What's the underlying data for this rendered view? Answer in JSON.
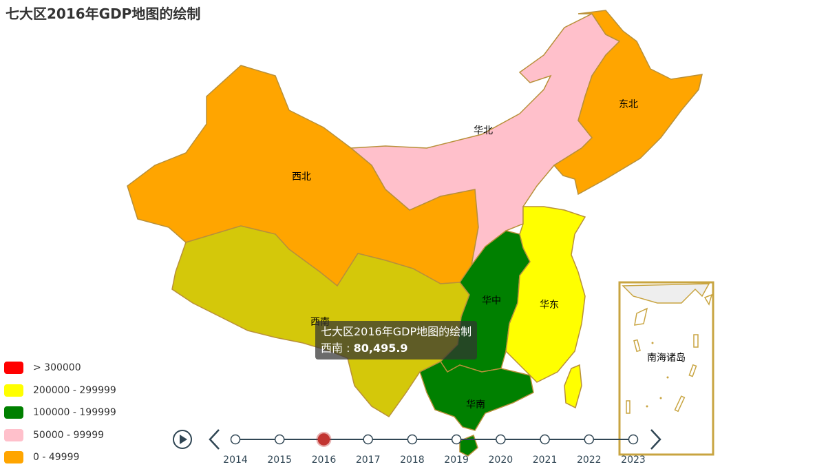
{
  "title": "七大区2016年GDP地图的绘制",
  "chart_data": {
    "type": "map",
    "year": "2016",
    "regions": [
      {
        "name": "华北",
        "color": "#ffc0cb"
      },
      {
        "name": "东北",
        "color": "#ffa500"
      },
      {
        "name": "西北",
        "color": "#ffa500"
      },
      {
        "name": "西南",
        "value": 80495.9,
        "color": "#d4c80a"
      },
      {
        "name": "华中",
        "color": "#008000"
      },
      {
        "name": "华东",
        "color": "#ffff00"
      },
      {
        "name": "华南",
        "color": "#008000"
      }
    ],
    "inset_label": "南海诸岛",
    "legend": [
      {
        "label": "> 300000",
        "color": "#ff0000"
      },
      {
        "label": "200000 - 299999",
        "color": "#ffff00"
      },
      {
        "label": "100000 - 199999",
        "color": "#008000"
      },
      {
        "label": "50000 - 99999",
        "color": "#ffc0cb"
      },
      {
        "label": "0 - 49999",
        "color": "#ffa500"
      }
    ]
  },
  "tooltip": {
    "title": "七大区2016年GDP地图的绘制",
    "region": "西南",
    "value": "80,495.9"
  },
  "timeline": {
    "years": [
      "2014",
      "2015",
      "2016",
      "2017",
      "2018",
      "2019",
      "2020",
      "2021",
      "2022",
      "2023"
    ],
    "current": "2016"
  }
}
